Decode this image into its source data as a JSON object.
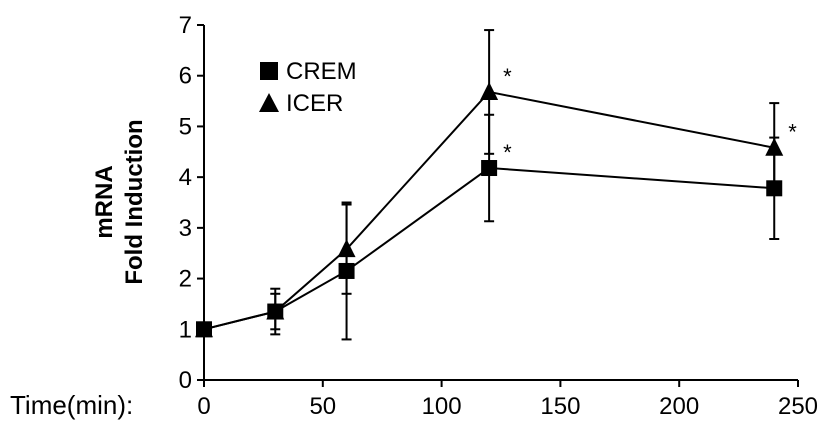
{
  "chart_data": {
    "type": "line",
    "x": [
      0,
      30,
      60,
      120,
      240
    ],
    "series": [
      {
        "name": "CREM",
        "marker": "square",
        "values": [
          1.0,
          1.35,
          2.15,
          4.18,
          3.78
        ],
        "err": [
          0.0,
          0.35,
          1.35,
          1.05,
          1.0
        ]
      },
      {
        "name": "ICER",
        "marker": "triangle",
        "values": [
          1.0,
          1.35,
          2.58,
          5.68,
          4.58
        ],
        "err": [
          0.0,
          0.45,
          0.88,
          1.22,
          0.88
        ]
      }
    ],
    "xlabel": "Time(min):",
    "ylabel_line1": "mRNA",
    "ylabel_line2": "Fold Induction",
    "xlim": [
      0,
      250
    ],
    "ylim": [
      0,
      7
    ],
    "xticks": [
      0,
      50,
      100,
      150,
      200,
      250
    ],
    "yticks": [
      0,
      1,
      2,
      3,
      4,
      5,
      6,
      7
    ],
    "grid": false,
    "legend_position": "top-left",
    "annotations": [
      {
        "text": "*",
        "series": "ICER",
        "x": 120
      },
      {
        "text": "*",
        "series": "CREM",
        "x": 120
      },
      {
        "text": "*",
        "series": "ICER",
        "x": 240
      }
    ],
    "color": "#000000"
  }
}
